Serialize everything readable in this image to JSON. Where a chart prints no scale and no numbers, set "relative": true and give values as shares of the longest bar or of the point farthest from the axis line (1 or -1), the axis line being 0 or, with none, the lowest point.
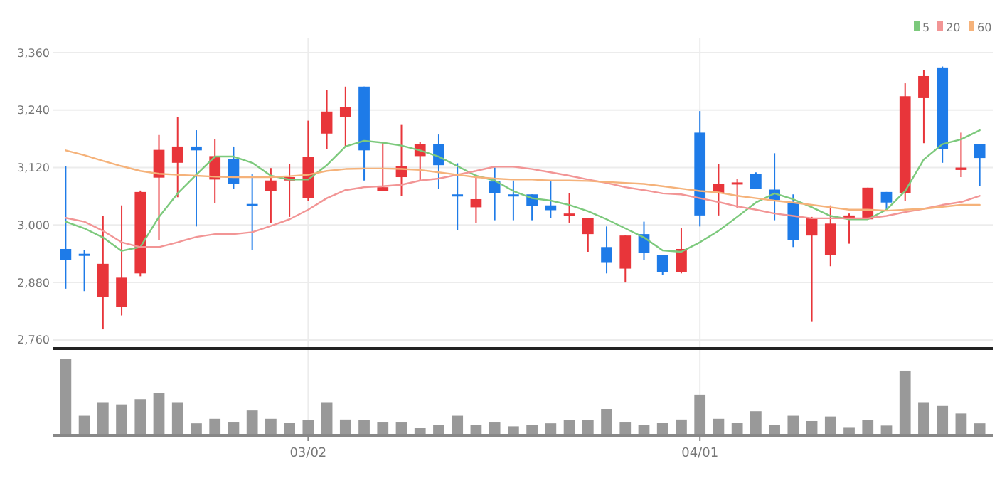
{
  "chart_data": [
    {
      "type": "candlestick",
      "categories": [
        null,
        null,
        null,
        null,
        null,
        null,
        null,
        null,
        null,
        null,
        null,
        null,
        null,
        null,
        null,
        null,
        null,
        null,
        null,
        null,
        null,
        null,
        null,
        null,
        null,
        null,
        null,
        null,
        null,
        null,
        null,
        null,
        null,
        null,
        null,
        null,
        null,
        null,
        null,
        null,
        null,
        null,
        null,
        null,
        null,
        null,
        null,
        null,
        null,
        null
      ],
      "ohlc": [
        [
          2950,
          3123,
          2867,
          2927
        ],
        [
          2940,
          2948,
          2862,
          2936
        ],
        [
          2850,
          3019,
          2782,
          2919
        ],
        [
          2829,
          3041,
          2811,
          2890
        ],
        [
          2899,
          3072,
          2893,
          3069
        ],
        [
          3099,
          3188,
          2968,
          3157
        ],
        [
          3130,
          3225,
          3058,
          3164
        ],
        [
          3164,
          3198,
          2997,
          3156
        ],
        [
          3095,
          3179,
          3046,
          3144
        ],
        [
          3138,
          3164,
          3076,
          3086
        ],
        [
          3044,
          3107,
          2948,
          3040
        ],
        [
          3071,
          3119,
          3005,
          3093
        ],
        [
          3093,
          3128,
          3017,
          3100
        ],
        [
          3056,
          3218,
          3051,
          3142
        ],
        [
          3191,
          3282,
          3159,
          3237
        ],
        [
          3225,
          3289,
          3164,
          3247
        ],
        [
          3289,
          3289,
          3093,
          3156
        ],
        [
          3071,
          3174,
          3071,
          3079
        ],
        [
          3100,
          3209,
          3061,
          3123
        ],
        [
          3144,
          3174,
          3093,
          3169
        ],
        [
          3169,
          3189,
          3076,
          3125
        ],
        [
          3064,
          3129,
          2990,
          3061
        ],
        [
          3037,
          3105,
          3005,
          3054
        ],
        [
          3091,
          3120,
          3010,
          3066
        ],
        [
          3064,
          3093,
          3010,
          3061
        ],
        [
          3064,
          3064,
          3010,
          3040
        ],
        [
          3041,
          3091,
          3015,
          3031
        ],
        [
          3020,
          3066,
          3005,
          3024
        ],
        [
          2981,
          3015,
          2944,
          3015
        ],
        [
          2954,
          2997,
          2899,
          2921
        ],
        [
          2909,
          2978,
          2880,
          2978
        ],
        [
          2981,
          3007,
          2927,
          2942
        ],
        [
          2938,
          2938,
          2895,
          2901
        ],
        [
          2901,
          2994,
          2899,
          2950
        ],
        [
          3193,
          3238,
          2997,
          3020
        ],
        [
          3066,
          3127,
          3020,
          3086
        ],
        [
          3085,
          3097,
          3035,
          3089
        ],
        [
          3107,
          3110,
          3076,
          3076
        ],
        [
          3074,
          3150,
          3010,
          3052
        ],
        [
          3048,
          3064,
          2954,
          2969
        ],
        [
          2978,
          3017,
          2799,
          3015
        ],
        [
          2938,
          3041,
          2914,
          3003
        ],
        [
          3015,
          3024,
          2961,
          3020
        ],
        [
          3012,
          3078,
          3012,
          3078
        ],
        [
          3069,
          3069,
          3032,
          3047
        ],
        [
          3066,
          3296,
          3050,
          3269
        ],
        [
          3265,
          3324,
          3171,
          3311
        ],
        [
          3329,
          3331,
          3130,
          3159
        ],
        [
          3115,
          3193,
          3100,
          3120
        ],
        [
          3169,
          3169,
          3081,
          3140
        ]
      ],
      "colors": [
        "#1e7be8",
        "#1e7be8",
        "#e8353a",
        "#e8353a",
        "#e8353a",
        "#e8353a",
        "#e8353a",
        "#1e7be8",
        "#e8353a",
        "#1e7be8",
        "#1e7be8",
        "#e8353a",
        "#e8353a",
        "#e8353a",
        "#e8353a",
        "#e8353a",
        "#1e7be8",
        "#e8353a",
        "#e8353a",
        "#e8353a",
        "#1e7be8",
        "#1e7be8",
        "#e8353a",
        "#1e7be8",
        "#1e7be8",
        "#1e7be8",
        "#1e7be8",
        "#e8353a",
        "#e8353a",
        "#1e7be8",
        "#e8353a",
        "#1e7be8",
        "#1e7be8",
        "#e8353a",
        "#1e7be8",
        "#e8353a",
        "#e8353a",
        "#1e7be8",
        "#1e7be8",
        "#1e7be8",
        "#e8353a",
        "#e8353a",
        "#e8353a",
        "#e8353a",
        "#1e7be8",
        "#e8353a",
        "#e8353a",
        "#1e7be8",
        "#e8353a",
        "#1e7be8"
      ],
      "series": [
        {
          "name": "5",
          "type": "line",
          "color": "#7cc97c",
          "values": [
            3007,
            2993,
            2974,
            2946,
            2954,
            3017,
            3066,
            3105,
            3143,
            3143,
            3130,
            3103,
            3095,
            3095,
            3125,
            3164,
            3176,
            3172,
            3166,
            3156,
            3143,
            3123,
            3103,
            3093,
            3071,
            3056,
            3051,
            3042,
            3029,
            3012,
            2993,
            2974,
            2947,
            2944,
            2964,
            2988,
            3017,
            3047,
            3066,
            3054,
            3037,
            3019,
            3012,
            3012,
            3032,
            3071,
            3137,
            3169,
            3179,
            3198
          ]
        },
        {
          "name": "20",
          "type": "line",
          "color": "#f29595",
          "values": [
            3015,
            3007,
            2988,
            2964,
            2954,
            2954,
            2964,
            2975,
            2981,
            2981,
            2985,
            2998,
            3012,
            3032,
            3056,
            3073,
            3079,
            3081,
            3084,
            3093,
            3097,
            3105,
            3113,
            3122,
            3122,
            3117,
            3110,
            3103,
            3095,
            3088,
            3079,
            3073,
            3066,
            3064,
            3056,
            3048,
            3039,
            3032,
            3024,
            3019,
            3014,
            3014,
            3014,
            3014,
            3019,
            3027,
            3034,
            3042,
            3048,
            3061
          ]
        },
        {
          "name": "60",
          "type": "line",
          "color": "#f5b27a",
          "values": [
            3156,
            3146,
            3134,
            3123,
            3113,
            3107,
            3105,
            3103,
            3101,
            3100,
            3100,
            3100,
            3102,
            3105,
            3113,
            3117,
            3118,
            3118,
            3117,
            3115,
            3110,
            3105,
            3100,
            3097,
            3095,
            3095,
            3093,
            3093,
            3092,
            3090,
            3088,
            3086,
            3081,
            3076,
            3071,
            3068,
            3061,
            3056,
            3051,
            3047,
            3042,
            3037,
            3032,
            3032,
            3030,
            3032,
            3034,
            3038,
            3042,
            3042
          ]
        }
      ],
      "ylim": [
        2742,
        3360
      ],
      "yticks": [
        {
          "value": 2760,
          "label": "2,760"
        },
        {
          "value": 2880,
          "label": "2,880"
        },
        {
          "value": 3000,
          "label": "3,000"
        },
        {
          "value": 3120,
          "label": "3,120"
        },
        {
          "value": 3240,
          "label": "3,240"
        },
        {
          "value": 3360,
          "label": "3,360"
        }
      ],
      "grid": "y",
      "legend": "top right",
      "tick_labels": "y"
    },
    {
      "type": "bar",
      "relative": true,
      "color": "#999999",
      "tick_labels": "x",
      "grid": "x",
      "categories": [
        null,
        null,
        null,
        null,
        null,
        null,
        null,
        null,
        null,
        null,
        null,
        null,
        null,
        "03/02",
        null,
        null,
        null,
        null,
        null,
        null,
        null,
        null,
        null,
        null,
        null,
        null,
        null,
        null,
        null,
        null,
        null,
        null,
        null,
        null,
        "04/01",
        null,
        null,
        null,
        null,
        null,
        null,
        null,
        null,
        null,
        null,
        null,
        null,
        null,
        null,
        null
      ],
      "values": [
        1,
        0.24,
        0.42,
        0.39,
        0.46,
        0.54,
        0.42,
        0.14,
        0.2,
        0.16,
        0.31,
        0.2,
        0.15,
        0.18,
        0.42,
        0.19,
        0.18,
        0.16,
        0.16,
        0.08,
        0.12,
        0.24,
        0.12,
        0.16,
        0.1,
        0.12,
        0.14,
        0.18,
        0.18,
        0.33,
        0.16,
        0.12,
        0.15,
        0.19,
        0.52,
        0.2,
        0.15,
        0.3,
        0.12,
        0.24,
        0.17,
        0.23,
        0.09,
        0.18,
        0.11,
        0.84,
        0.42,
        0.37,
        0.27,
        0.14
      ]
    }
  ]
}
